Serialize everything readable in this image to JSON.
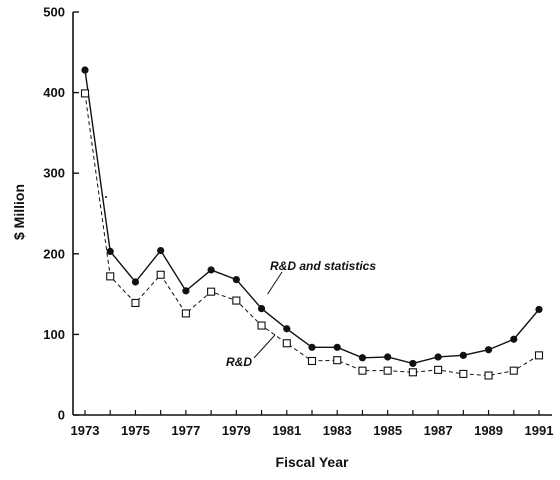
{
  "chart_data": {
    "type": "line",
    "title": "",
    "xlabel": "Fiscal Year",
    "ylabel": "$ Million",
    "xlim": [
      1973,
      1991
    ],
    "ylim": [
      0,
      500
    ],
    "x_ticks": [
      "1973",
      "1975",
      "1977",
      "1979",
      "1981",
      "1983",
      "1985",
      "1987",
      "1989",
      "1991"
    ],
    "y_ticks": [
      "0",
      "100",
      "200",
      "300",
      "400",
      "500"
    ],
    "x": [
      1973,
      1974,
      1975,
      1976,
      1977,
      1978,
      1979,
      1980,
      1981,
      1982,
      1983,
      1984,
      1985,
      1986,
      1987,
      1988,
      1989,
      1990,
      1991
    ],
    "series": [
      {
        "name": "R&D and statistics",
        "marker": "filled-circle",
        "line": "solid",
        "values": [
          428,
          203,
          165,
          204,
          154,
          180,
          168,
          132,
          107,
          84,
          84,
          71,
          72,
          64,
          72,
          74,
          81,
          94,
          131
        ]
      },
      {
        "name": "R&D",
        "marker": "open-square",
        "line": "dashed",
        "values": [
          399,
          172,
          139,
          174,
          126,
          153,
          142,
          111,
          89,
          67,
          68,
          55,
          55,
          53,
          56,
          51,
          49,
          55,
          74
        ]
      }
    ],
    "grid": false,
    "legend": "inline annotations with leader lines"
  }
}
